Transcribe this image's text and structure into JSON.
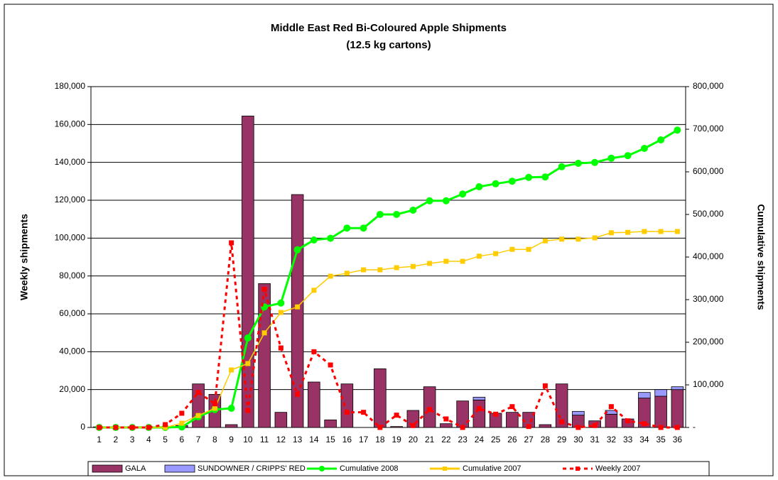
{
  "chart_data": {
    "type": "combo",
    "title": "Middle East Red Bi-Coloured Apple Shipments",
    "subtitle": "(12.5 kg cartons)",
    "y_label": "Weekly shipments",
    "y2_label": "Cumulative shipments",
    "categories": [
      "1",
      "2",
      "3",
      "4",
      "5",
      "6",
      "7",
      "8",
      "9",
      "10",
      "11",
      "12",
      "13",
      "14",
      "15",
      "16",
      "17",
      "18",
      "19",
      "20",
      "21",
      "22",
      "23",
      "24",
      "25",
      "26",
      "27",
      "28",
      "29",
      "30",
      "31",
      "32",
      "33",
      "34",
      "35",
      "36"
    ],
    "ylim": [
      0,
      180000
    ],
    "yticks": [
      0,
      {
        "value": 20000,
        "label": "20,000"
      },
      {
        "value": 40000,
        "label": "40,000"
      },
      {
        "value": 60000,
        "label": "60,000"
      },
      {
        "value": 80000,
        "label": "80,000"
      },
      {
        "value": 100000,
        "label": "100,000"
      },
      {
        "value": 120000,
        "label": "120,000"
      },
      {
        "value": 140000,
        "label": "140,000"
      },
      {
        "value": 160000,
        "label": "160,000"
      },
      {
        "value": 180000,
        "label": "180,000"
      }
    ],
    "y2lim": [
      0,
      800000
    ],
    "y2ticks": [
      {
        "value": 0,
        "label": "-"
      },
      {
        "value": 100000,
        "label": "100,000"
      },
      {
        "value": 200000,
        "label": "200,000"
      },
      {
        "value": 300000,
        "label": "300,000"
      },
      {
        "value": 400000,
        "label": "400,000"
      },
      {
        "value": 500000,
        "label": "500,000"
      },
      {
        "value": 600000,
        "label": "600,000"
      },
      {
        "value": 700000,
        "label": "700,000"
      },
      {
        "value": 800000,
        "label": "800,000"
      }
    ],
    "legend": "bottom",
    "series": [
      {
        "name": "GALA",
        "kind": "bar",
        "color": "#993366",
        "values": [
          300,
          300,
          300,
          300,
          300,
          1000,
          23000,
          17500,
          1500,
          164500,
          76000,
          8000,
          123000,
          24000,
          4000,
          23000,
          0,
          31000,
          500,
          9000,
          21500,
          2000,
          14000,
          14500,
          7500,
          8000,
          8000,
          1500,
          23000,
          6500,
          3500,
          7000,
          4500,
          15500,
          16500,
          20000
        ]
      },
      {
        "name": "SUNDOWNER / CRIPPS' RED",
        "kind": "bar",
        "color": "#9999ff",
        "values": [
          0,
          0,
          0,
          0,
          0,
          0,
          0,
          0,
          0,
          0,
          0,
          0,
          0,
          0,
          0,
          0,
          0,
          0,
          0,
          0,
          0,
          0,
          0,
          1500,
          0,
          0,
          0,
          0,
          0,
          2000,
          0,
          2000,
          0,
          3000,
          3500,
          1500
        ]
      },
      {
        "name": "Cumulative 2008",
        "kind": "line",
        "axis": "y2",
        "color": "#00ff00",
        "values": [
          0,
          0,
          0,
          0,
          0,
          1000,
          25000,
          42000,
          45000,
          210000,
          283000,
          292000,
          417000,
          440000,
          444000,
          468000,
          468000,
          500000,
          500000,
          510000,
          532000,
          532000,
          548000,
          565000,
          572000,
          578000,
          587000,
          588000,
          612000,
          620000,
          622000,
          632000,
          638000,
          655000,
          675000,
          698000
        ]
      },
      {
        "name": "Cumulative 2007",
        "kind": "line",
        "axis": "y2",
        "color": "#ffcc00",
        "values": [
          0,
          0,
          0,
          0,
          0,
          10000,
          28000,
          45000,
          135000,
          150000,
          222000,
          270000,
          283000,
          322000,
          355000,
          362000,
          370000,
          370000,
          375000,
          378000,
          385000,
          390000,
          390000,
          402000,
          408000,
          418000,
          418000,
          438000,
          442000,
          442000,
          445000,
          457000,
          458000,
          460000,
          460000,
          460000
        ]
      },
      {
        "name": "Weekly 2007",
        "kind": "dashed",
        "color": "#ff0000",
        "values": [
          0,
          0,
          0,
          0,
          1500,
          7500,
          18500,
          12500,
          97500,
          9000,
          73000,
          42000,
          17500,
          40000,
          33000,
          8000,
          8000,
          0,
          6500,
          1000,
          9500,
          4500,
          0,
          10000,
          7000,
          11000,
          500,
          22000,
          3000,
          0,
          1000,
          11000,
          3500,
          2000,
          0,
          0
        ]
      }
    ]
  }
}
